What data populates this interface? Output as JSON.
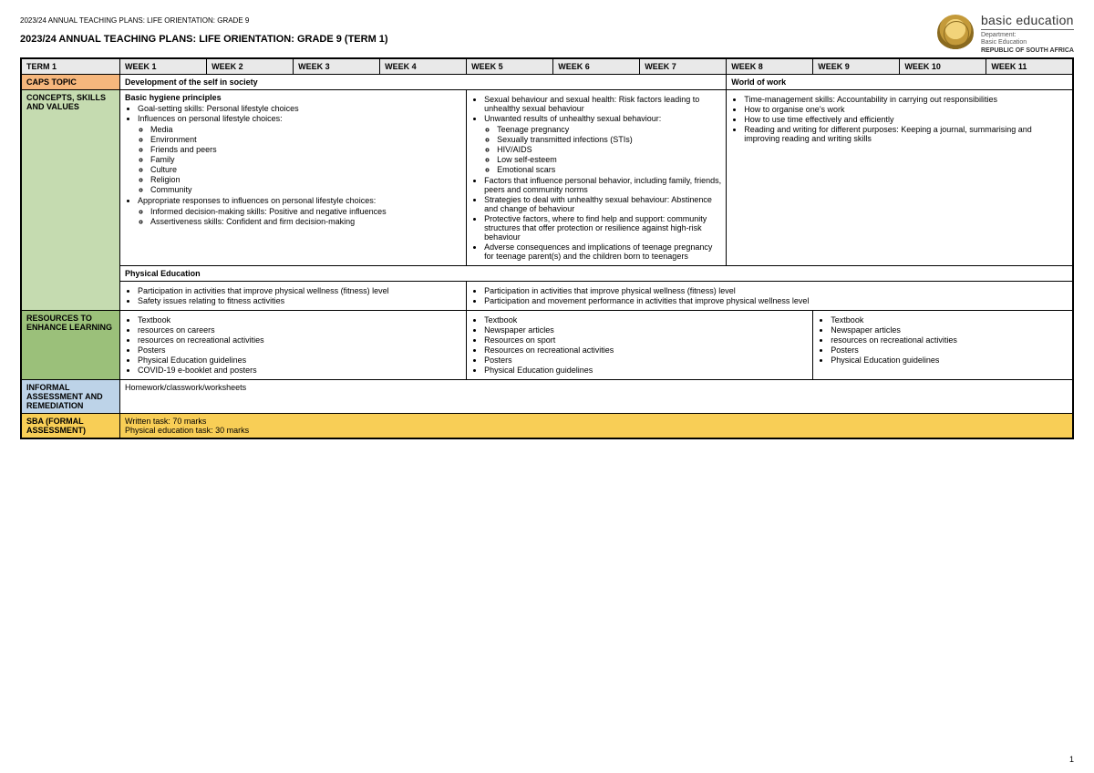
{
  "header": {
    "small": "2023/24 ANNUAL TEACHING PLANS: LIFE ORIENTATION: GRADE 9",
    "title": "2023/24 ANNUAL TEACHING PLANS: LIFE ORIENTATION: GRADE 9 (TERM 1)",
    "logo": {
      "brand": "basic education",
      "dept": "Department:",
      "dept2": "Basic Education",
      "country": "REPUBLIC OF SOUTH AFRICA"
    }
  },
  "cols": {
    "term": "TERM 1",
    "weeks": [
      "WEEK 1",
      "WEEK 2",
      "WEEK 3",
      "WEEK 4",
      "WEEK 5",
      "WEEK 6",
      "WEEK 7",
      "WEEK 8",
      "WEEK 9",
      "WEEK 10",
      "WEEK 11"
    ]
  },
  "rows": {
    "caps": {
      "label": "CAPS TOPIC",
      "a": "Development of the self in society",
      "b": "World of work"
    },
    "concepts": {
      "label": "CONCEPTS, SKILLS AND VALUES",
      "col1_heading": "Basic hygiene principles",
      "col1": [
        "Goal-setting skills: Personal lifestyle choices",
        "Influences on personal lifestyle choices:"
      ],
      "col1_sub": [
        "Media",
        "Environment",
        "Friends and peers",
        "Family",
        "Culture",
        "Religion",
        "Community"
      ],
      "col1_after": [
        "Appropriate responses to influences on personal lifestyle choices:"
      ],
      "col1_after_sub": [
        "Informed decision-making skills: Positive and negative influences",
        "Assertiveness skills: Confident and firm decision-making"
      ],
      "col2": [
        "Sexual behaviour and sexual health: Risk factors leading to unhealthy sexual behaviour",
        "Unwanted results of unhealthy sexual behaviour:"
      ],
      "col2_sub": [
        "Teenage pregnancy",
        "Sexually transmitted infections (STIs)",
        "HIV/AIDS",
        "Low self-esteem",
        "Emotional scars"
      ],
      "col2_after": [
        "Factors that influence personal behavior, including family, friends, peers and community norms",
        "Strategies to deal with unhealthy sexual behaviour: Abstinence and change of behaviour",
        "Protective factors, where to find help and support: community structures that offer protection or resilience against high-risk behaviour",
        "Adverse consequences and implications of teenage pregnancy for teenage parent(s) and the children born to teenagers"
      ],
      "col3": [
        "Time-management skills: Accountability in carrying out responsibilities",
        "How to organise one's work",
        "How to use time effectively and efficiently",
        "Reading and writing for different purposes: Keeping a journal, summarising and improving reading and writing skills"
      ]
    },
    "pe": {
      "label": "Physical Education"
    },
    "pe_items": {
      "a": [
        "Participation in activities that improve physical wellness (fitness) level",
        "Safety issues relating to fitness activities"
      ],
      "b": [
        "Participation in activities that improve physical wellness (fitness) level",
        "Participation and movement performance in activities that improve physical wellness level"
      ]
    },
    "resources": {
      "label": "RESOURCES TO ENHANCE LEARNING",
      "a": [
        "Textbook",
        "resources on careers",
        "resources on recreational activities",
        "Posters",
        "Physical Education guidelines",
        "COVID-19 e-booklet and posters"
      ],
      "b": [
        "Textbook",
        "Newspaper articles",
        "Resources on sport",
        "Resources on recreational activities",
        "Posters",
        "Physical Education guidelines"
      ],
      "c": [
        "Textbook",
        "Newspaper articles",
        "resources on recreational activities",
        "Posters",
        "Physical Education guidelines"
      ]
    },
    "informal": {
      "label": "INFORMAL ASSESSMENT AND REMEDIATION",
      "text": "Homework/classwork/worksheets"
    },
    "sba": {
      "label": "SBA (FORMAL ASSESSMENT)",
      "line1": "Written task: 70 marks",
      "line2": "Physical education task: 30 marks"
    }
  },
  "pagenum": "1",
  "colors": {
    "orange": "#f6b77d",
    "green": "#c5dbb0",
    "darkgreen": "#9bc07a",
    "blue": "#bdd3e8",
    "yellow": "#f8ce56",
    "grey": "#e9e9e9"
  }
}
